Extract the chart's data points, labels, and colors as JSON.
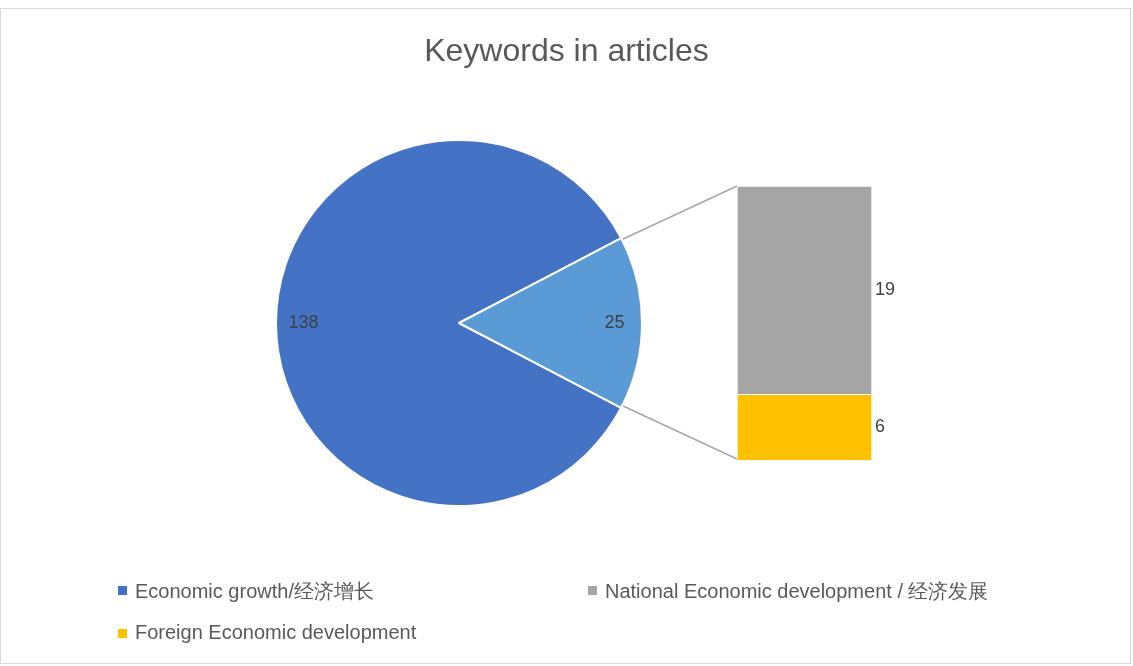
{
  "chart_data": [
    {
      "type": "pie",
      "title": "Keywords in articles",
      "categories": [
        "Economic growth/经济增长",
        null
      ],
      "values": [
        138,
        25
      ],
      "colors": [
        "#4472c4",
        "#5b9bd5"
      ],
      "data_labels": true,
      "legend": "bottom"
    },
    {
      "type": "bar",
      "stacked": true,
      "categories": [
        null
      ],
      "series": [
        {
          "name": "Foreign Economic development",
          "color": "#ffc000",
          "values": [
            6
          ]
        },
        {
          "name": "National Economic development / 经济发展",
          "color": "#a5a5a5",
          "values": [
            19
          ]
        }
      ],
      "data_labels": true,
      "legend": "bottom"
    }
  ]
}
